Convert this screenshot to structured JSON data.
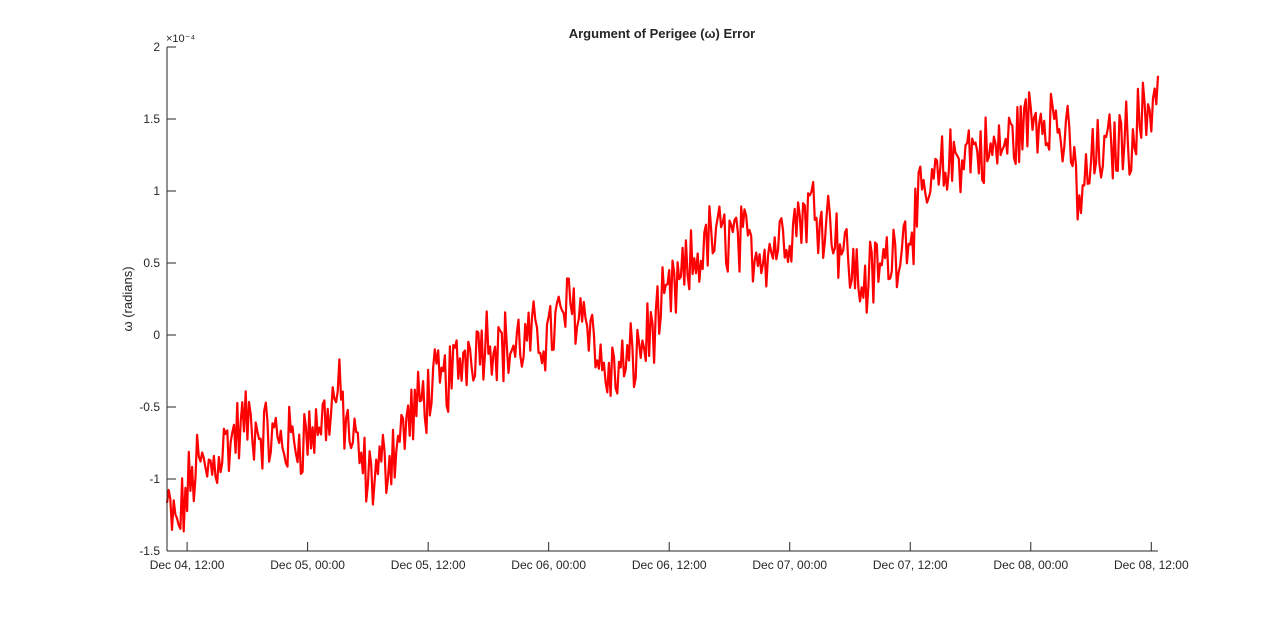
{
  "chart_data": {
    "type": "line",
    "title": "Argument of Perigee (ω) Error",
    "xlabel": "",
    "ylabel": "ω (radians)",
    "y_exponent_label": "×10⁻⁴",
    "xlim": [
      "2017-12-04T10:00",
      "2017-12-08T12:40"
    ],
    "ylim": [
      -1.5,
      2
    ],
    "y_scale_factor": 0.0001,
    "x_ticks": [
      {
        "t": "2017-12-04T12:00",
        "label": "Dec 04, 12:00"
      },
      {
        "t": "2017-12-05T00:00",
        "label": "Dec 05, 00:00"
      },
      {
        "t": "2017-12-05T12:00",
        "label": "Dec 05, 12:00"
      },
      {
        "t": "2017-12-06T00:00",
        "label": "Dec 06, 00:00"
      },
      {
        "t": "2017-12-06T12:00",
        "label": "Dec 06, 12:00"
      },
      {
        "t": "2017-12-07T00:00",
        "label": "Dec 07, 00:00"
      },
      {
        "t": "2017-12-07T12:00",
        "label": "Dec 07, 12:00"
      },
      {
        "t": "2017-12-08T00:00",
        "label": "Dec 08, 00:00"
      },
      {
        "t": "2017-12-08T12:00",
        "label": "Dec 08, 12:00"
      }
    ],
    "y_ticks": [
      {
        "v": -1.5,
        "label": "-1.5"
      },
      {
        "v": -1,
        "label": "-1"
      },
      {
        "v": -0.5,
        "label": "-0.5"
      },
      {
        "v": 0,
        "label": "0"
      },
      {
        "v": 0.5,
        "label": "0.5"
      },
      {
        "v": 1,
        "label": "1"
      },
      {
        "v": 1.5,
        "label": "1.5"
      },
      {
        "v": 2,
        "label": "2"
      }
    ],
    "grid": false,
    "series": [
      {
        "color": "#ff0000",
        "x": [
          "2017-12-04T10:00",
          "2017-12-04T11:00",
          "2017-12-04T12:00",
          "2017-12-04T13:00",
          "2017-12-04T14:00",
          "2017-12-04T16:00",
          "2017-12-04T18:00",
          "2017-12-04T20:00",
          "2017-12-04T22:00",
          "2017-12-05T00:00",
          "2017-12-05T02:00",
          "2017-12-05T03:00",
          "2017-12-05T04:00",
          "2017-12-05T06:00",
          "2017-12-05T07:00",
          "2017-12-05T08:00",
          "2017-12-05T10:00",
          "2017-12-05T12:00",
          "2017-12-05T14:00",
          "2017-12-05T16:00",
          "2017-12-05T18:00",
          "2017-12-05T20:00",
          "2017-12-05T22:00",
          "2017-12-06T00:00",
          "2017-12-06T02:00",
          "2017-12-06T04:00",
          "2017-12-06T05:00",
          "2017-12-06T06:00",
          "2017-12-06T08:00",
          "2017-12-06T10:00",
          "2017-12-06T12:00",
          "2017-12-06T14:00",
          "2017-12-06T16:00",
          "2017-12-06T18:00",
          "2017-12-06T20:00",
          "2017-12-06T22:00",
          "2017-12-07T00:00",
          "2017-12-07T02:00",
          "2017-12-07T04:00",
          "2017-12-07T06:00",
          "2017-12-07T07:00",
          "2017-12-07T08:00",
          "2017-12-07T10:00",
          "2017-12-07T12:00",
          "2017-12-07T14:00",
          "2017-12-07T16:00",
          "2017-12-07T18:00",
          "2017-12-07T20:00",
          "2017-12-07T22:00",
          "2017-12-08T00:00",
          "2017-12-08T02:00",
          "2017-12-08T04:00",
          "2017-12-08T05:00",
          "2017-12-08T06:00",
          "2017-12-08T08:00",
          "2017-12-08T10:00",
          "2017-12-08T12:00",
          "2017-12-08T12:40"
        ],
        "values": [
          -1.2,
          -1.35,
          -1.1,
          -0.9,
          -0.95,
          -0.75,
          -0.6,
          -0.7,
          -0.75,
          -0.7,
          -0.55,
          -0.4,
          -0.65,
          -1.0,
          -0.95,
          -0.85,
          -0.6,
          -0.4,
          -0.3,
          -0.1,
          0.0,
          -0.1,
          -0.05,
          0.0,
          0.2,
          0.15,
          -0.2,
          -0.3,
          -0.2,
          0.0,
          0.25,
          0.45,
          0.65,
          0.7,
          0.6,
          0.6,
          0.75,
          0.9,
          0.8,
          0.5,
          0.35,
          0.4,
          0.55,
          0.75,
          1.0,
          1.2,
          1.3,
          1.25,
          1.35,
          1.5,
          1.55,
          1.25,
          0.9,
          1.2,
          1.3,
          1.4,
          1.6,
          1.8
        ]
      }
    ]
  }
}
